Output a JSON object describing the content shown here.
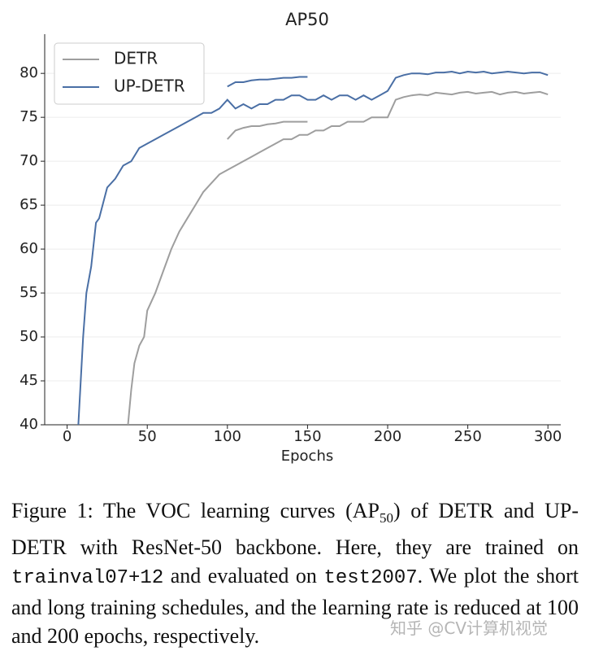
{
  "chart_data": {
    "type": "line",
    "title": "AP50",
    "x_label": "Epochs",
    "xlim": [
      -14,
      308
    ],
    "ylim": [
      40,
      84
    ],
    "xticks": [
      0,
      50,
      100,
      150,
      200,
      250,
      300
    ],
    "yticks": [
      40,
      45,
      50,
      55,
      60,
      65,
      70,
      75,
      80
    ],
    "grid": true,
    "legend": "upper-left",
    "series": [
      {
        "name": "DETR",
        "color": "#9e9e9e",
        "x": [
          38,
          40,
          42,
          45,
          48,
          50,
          55,
          60,
          65,
          70,
          75,
          80,
          85,
          90,
          95,
          100,
          105,
          110,
          115,
          120,
          125,
          130,
          135,
          140,
          145,
          150,
          155,
          160,
          165,
          170,
          175,
          180,
          185,
          190,
          195,
          200,
          205,
          210,
          215,
          220,
          225,
          230,
          235,
          240,
          245,
          250,
          255,
          260,
          265,
          270,
          275,
          280,
          285,
          290,
          295,
          300
        ],
        "values": [
          40,
          44,
          47,
          49,
          50,
          53,
          55,
          57.5,
          60,
          62,
          63.5,
          65,
          66.5,
          67.5,
          68.5,
          69,
          69.5,
          70,
          70.5,
          71,
          71.5,
          72,
          72.5,
          72.5,
          73,
          73,
          73.5,
          73.5,
          74,
          74,
          74.5,
          74.5,
          74.5,
          75,
          75,
          75,
          77,
          77.3,
          77.5,
          77.6,
          77.5,
          77.8,
          77.7,
          77.6,
          77.8,
          77.9,
          77.7,
          77.8,
          77.9,
          77.6,
          77.8,
          77.9,
          77.7,
          77.8,
          77.9,
          77.6
        ],
        "short_x": [
          100,
          105,
          110,
          115,
          120,
          125,
          130,
          135,
          140,
          145,
          150
        ],
        "short_values": [
          72.5,
          73.5,
          73.8,
          74,
          74,
          74.2,
          74.3,
          74.5,
          74.5,
          74.5,
          74.5
        ]
      },
      {
        "name": "UP-DETR",
        "color": "#4a6fa5",
        "x": [
          7,
          10,
          12,
          15,
          18,
          20,
          25,
          30,
          35,
          40,
          45,
          50,
          55,
          60,
          65,
          70,
          75,
          80,
          85,
          90,
          95,
          100,
          105,
          110,
          115,
          120,
          125,
          130,
          135,
          140,
          145,
          150,
          155,
          160,
          165,
          170,
          175,
          180,
          185,
          190,
          195,
          200,
          205,
          210,
          215,
          220,
          225,
          230,
          235,
          240,
          245,
          250,
          255,
          260,
          265,
          270,
          275,
          280,
          285,
          290,
          295,
          300
        ],
        "values": [
          40,
          50,
          55,
          58,
          63,
          63.5,
          67,
          68,
          69.5,
          70,
          71.5,
          72,
          72.5,
          73,
          73.5,
          74,
          74.5,
          75,
          75.5,
          75.5,
          76,
          77,
          76,
          76.5,
          76,
          76.5,
          76.5,
          77,
          77,
          77.5,
          77.5,
          77,
          77,
          77.5,
          77,
          77.5,
          77.5,
          77,
          77.5,
          77,
          77.5,
          78,
          79.5,
          79.8,
          80,
          80,
          79.9,
          80.1,
          80.1,
          80.2,
          80,
          80.2,
          80.1,
          80.2,
          80,
          80.1,
          80.2,
          80.1,
          80,
          80.1,
          80.1,
          79.8
        ],
        "short_x": [
          100,
          105,
          110,
          115,
          120,
          125,
          130,
          135,
          140,
          145,
          150
        ],
        "short_values": [
          78.5,
          79,
          79,
          79.2,
          79.3,
          79.3,
          79.4,
          79.5,
          79.5,
          79.6,
          79.6
        ]
      }
    ]
  },
  "caption_parts": [
    "Figure 1: The VOC learning curves (AP",
    "50",
    ") of DETR and UP-DETR with ResNet-50 backbone. Here, they are trained on ",
    "trainval07+12",
    " and evaluated on ",
    "test2007",
    ". We plot the short and long training schedules, and the learning rate is reduced at 100 and 200 epochs, respectively."
  ],
  "watermark": "知乎 @CV计算机视觉"
}
